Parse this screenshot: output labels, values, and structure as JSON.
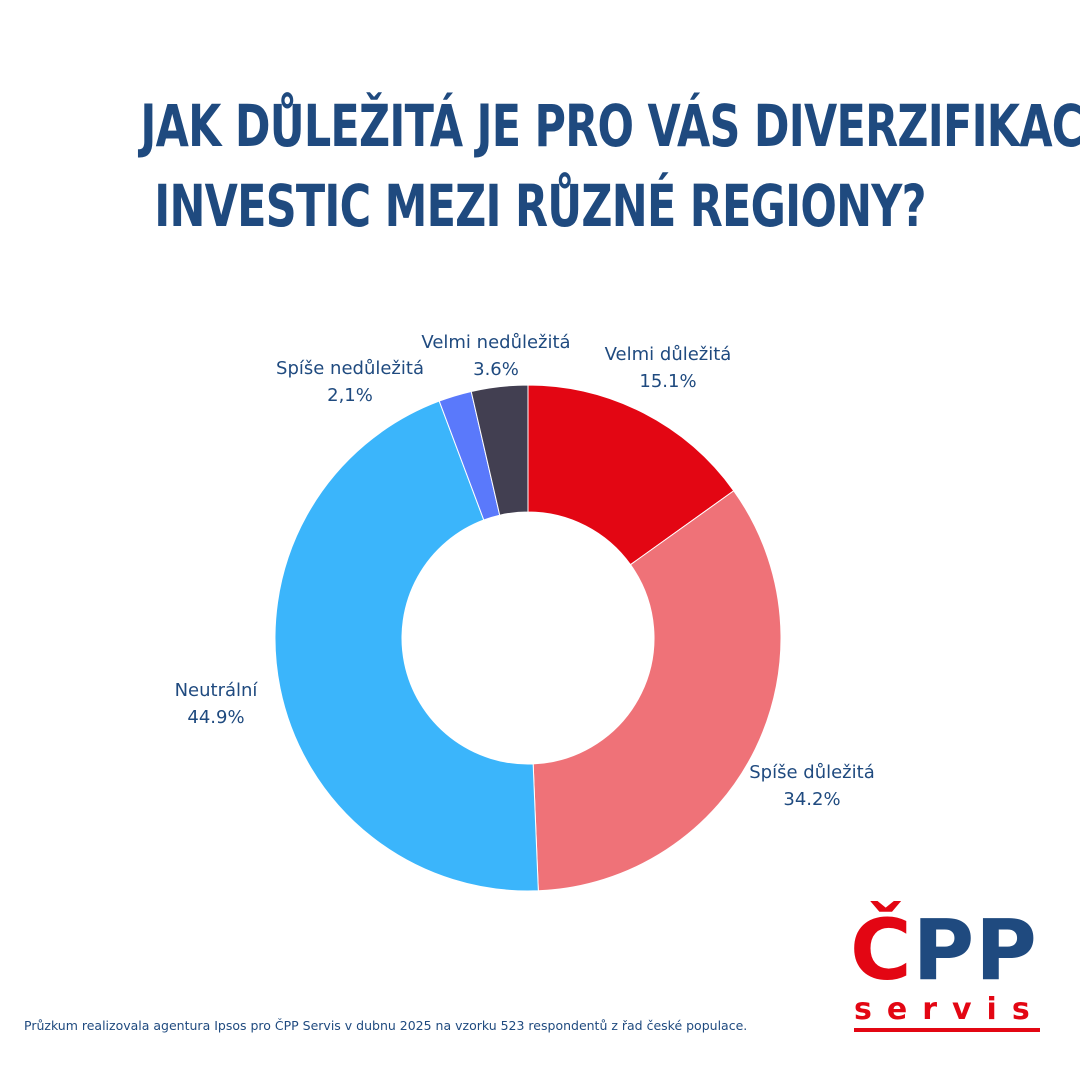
{
  "title": {
    "line1": "JAK DŮLEŽITÁ JE PRO VÁS DIVERZIFIKACE",
    "line2": "INVESTIC MEZI RŮZNÉ REGIONY?"
  },
  "chart_data": {
    "type": "pie",
    "title": "JAK DŮLEŽITÁ JE PRO VÁS DIVERZIFIKACE INVESTIC MEZI RŮZNÉ REGIONY?",
    "donut": true,
    "slices": [
      {
        "label": "Velmi důležitá",
        "value": 15.1,
        "value_label": "15.1%",
        "color": "#e30613"
      },
      {
        "label": "Spíše důležitá",
        "value": 34.2,
        "value_label": "34.2%",
        "color": "#ef7278"
      },
      {
        "label": "Neutrální",
        "value": 44.9,
        "value_label": "44.9%",
        "color": "#3bb5fb"
      },
      {
        "label": "Spíše nedůležitá",
        "value": 2.1,
        "value_label": "2,1%",
        "color": "#5a79fb"
      },
      {
        "label": "Velmi nedůležitá",
        "value": 3.6,
        "value_label": "3.6%",
        "color": "#423f51"
      }
    ]
  },
  "footer": {
    "source_note": "Průzkum realizovala agentura Ipsos pro ČPP Servis v dubnu 2025 na vzorku 523 respondentů z řad české populace."
  },
  "logo": {
    "c": "Č",
    "pp": "PP",
    "servis": "servis"
  },
  "colors": {
    "title": "#1f4a7f",
    "label": "#1f4a7f",
    "brand_red": "#e30613",
    "brand_blue": "#1f4a7f"
  }
}
